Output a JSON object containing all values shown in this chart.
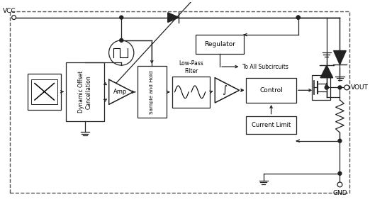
{
  "bg_color": "#ffffff",
  "line_color": "#222222",
  "box_edge": "#222222",
  "text_color": "#000000",
  "labels": {
    "vcc": "VCC",
    "vout": "VOUT",
    "gnd": "GND",
    "doc": "Dynamic Offset\nCancellation",
    "amp": "Amp",
    "sh": "Sample and Hold",
    "lpf_title": "Low-Pass\nFilter",
    "control": "Control",
    "current_limit": "Current Limit",
    "regulator": "Regulator",
    "to_subcircuits": "To All Subcircuits"
  }
}
